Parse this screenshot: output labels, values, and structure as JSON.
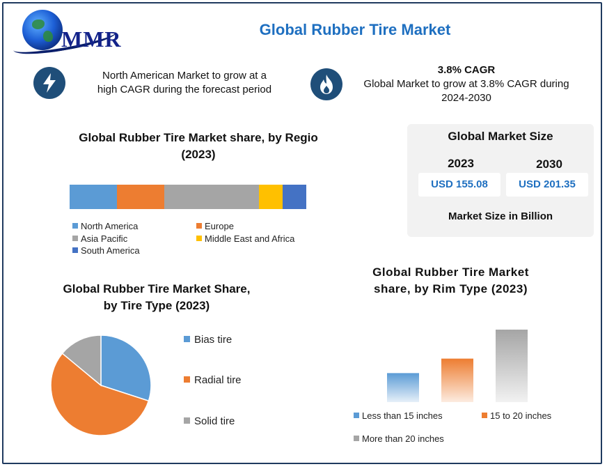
{
  "header": {
    "title": "Global Rubber Tire Market",
    "logo_text": "MMR"
  },
  "highlights": [
    {
      "icon": "lightning-icon",
      "lines": [
        "North American Market to grow at a",
        "high CAGR during the forecast period"
      ]
    },
    {
      "icon": "flame-icon",
      "heading": "3.8% CAGR",
      "lines": [
        "Global Market to grow at 3.8% CAGR during",
        "2024-2030"
      ]
    }
  ],
  "market_size": {
    "title": "Global Market Size",
    "years": [
      {
        "year": "2023",
        "value": "USD 155.08"
      },
      {
        "year": "2030",
        "value": "USD 201.35"
      }
    ],
    "footer": "Market Size in Billion"
  },
  "colors": {
    "title_blue": "#1e6fc0",
    "icon_navy": "#1f4e79",
    "north_america": "#5b9bd5",
    "europe": "#ed7d31",
    "asia_pacific": "#a5a5a5",
    "mea": "#ffc000",
    "south_america": "#4472c4"
  },
  "chart_data": [
    {
      "type": "bar",
      "orientation": "horizontal-stacked",
      "title_lines": [
        "Global Rubber Tire Market share, by Regio",
        "(2023)"
      ],
      "categories": [
        "2023"
      ],
      "series": [
        {
          "name": "North America",
          "values": [
            20
          ],
          "color": "#5b9bd5"
        },
        {
          "name": "Europe",
          "values": [
            20
          ],
          "color": "#ed7d31"
        },
        {
          "name": "Asia Pacific",
          "values": [
            40
          ],
          "color": "#a5a5a5"
        },
        {
          "name": "Middle East and Africa",
          "values": [
            10
          ],
          "color": "#ffc000"
        },
        {
          "name": "South America",
          "values": [
            10
          ],
          "color": "#4472c4"
        }
      ],
      "legend": "bottom"
    },
    {
      "type": "pie",
      "title_lines": [
        "Global Rubber Tire Market Share,",
        "by Tire Type (2023)"
      ],
      "slices": [
        {
          "name": "Bias tire",
          "value": 30,
          "color": "#5b9bd5"
        },
        {
          "name": "Radial tire",
          "value": 56,
          "color": "#ed7d31"
        },
        {
          "name": "Solid tire",
          "value": 14,
          "color": "#a5a5a5"
        }
      ],
      "legend": "right"
    },
    {
      "type": "bar",
      "title_lines": [
        "Global Rubber Tire Market",
        "share, by Rim Type (2023)"
      ],
      "categories": [
        "Less than 15 inches",
        "15 to 20 inches",
        "More than 20 inches"
      ],
      "values": [
        20,
        30,
        50
      ],
      "colors": [
        "#5b9bd5",
        "#ed7d31",
        "#a5a5a5"
      ],
      "ylim": [
        0,
        50
      ],
      "grid": false,
      "legend": "bottom"
    }
  ]
}
